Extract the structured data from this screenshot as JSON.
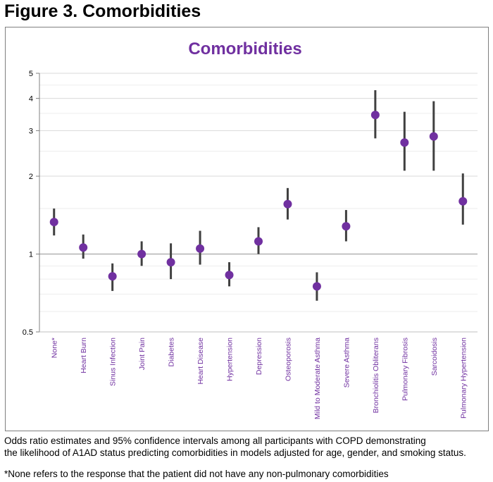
{
  "figure_title": "Figure 3. Comorbidities",
  "caption": {
    "line1": "Odds ratio estimates and 95% confidence intervals among all participants with COPD demonstrating",
    "line2": "the likelihood of A1AD status predicting comorbidities in models adjusted for age, gender, and smoking status."
  },
  "footnote": "*None refers to the response that the patient did not have any non-pulmonary comorbidities",
  "colors": {
    "point": "#7030a0",
    "title": "#7030a0",
    "label": "#7030a0",
    "whisker": "#404040",
    "grid": "#d9d9d9",
    "ref_line": "#a6a6a6"
  },
  "chart_data": {
    "type": "scatter",
    "subtype": "point estimates with 95% confidence intervals",
    "title": "Comorbidities",
    "xlabel": "",
    "ylabel": "",
    "y_scale": "log",
    "ylim": [
      0.5,
      5
    ],
    "y_ticks": [
      "0.5",
      "1",
      "2",
      "3",
      "4",
      "5"
    ],
    "reference_line": 1,
    "grid": true,
    "legend": "none",
    "categories": [
      "None*",
      "Heart Burn",
      "Sinus Infection",
      "Joint Pain",
      "Diabetes",
      "Heart Disease",
      "Hypertension",
      "Depression",
      "Osteoporosis",
      "Mild to Moderate Asthma",
      "Severe Asthma",
      "Bronchiolitis Obliterans",
      "Pulmonary Fibrosis",
      "Sarcoidosis",
      "Pulmonary Hypertension"
    ],
    "estimates": [
      1.33,
      1.06,
      0.82,
      1.0,
      0.93,
      1.05,
      0.83,
      1.12,
      1.56,
      0.75,
      1.28,
      3.45,
      2.7,
      2.85,
      1.6
    ],
    "ci_lower": [
      1.18,
      0.96,
      0.72,
      0.9,
      0.8,
      0.91,
      0.75,
      1.0,
      1.36,
      0.66,
      1.12,
      2.8,
      2.1,
      2.1,
      1.3
    ],
    "ci_upper": [
      1.5,
      1.19,
      0.92,
      1.12,
      1.1,
      1.23,
      0.93,
      1.27,
      1.8,
      0.85,
      1.48,
      4.3,
      3.55,
      3.9,
      2.05
    ]
  }
}
